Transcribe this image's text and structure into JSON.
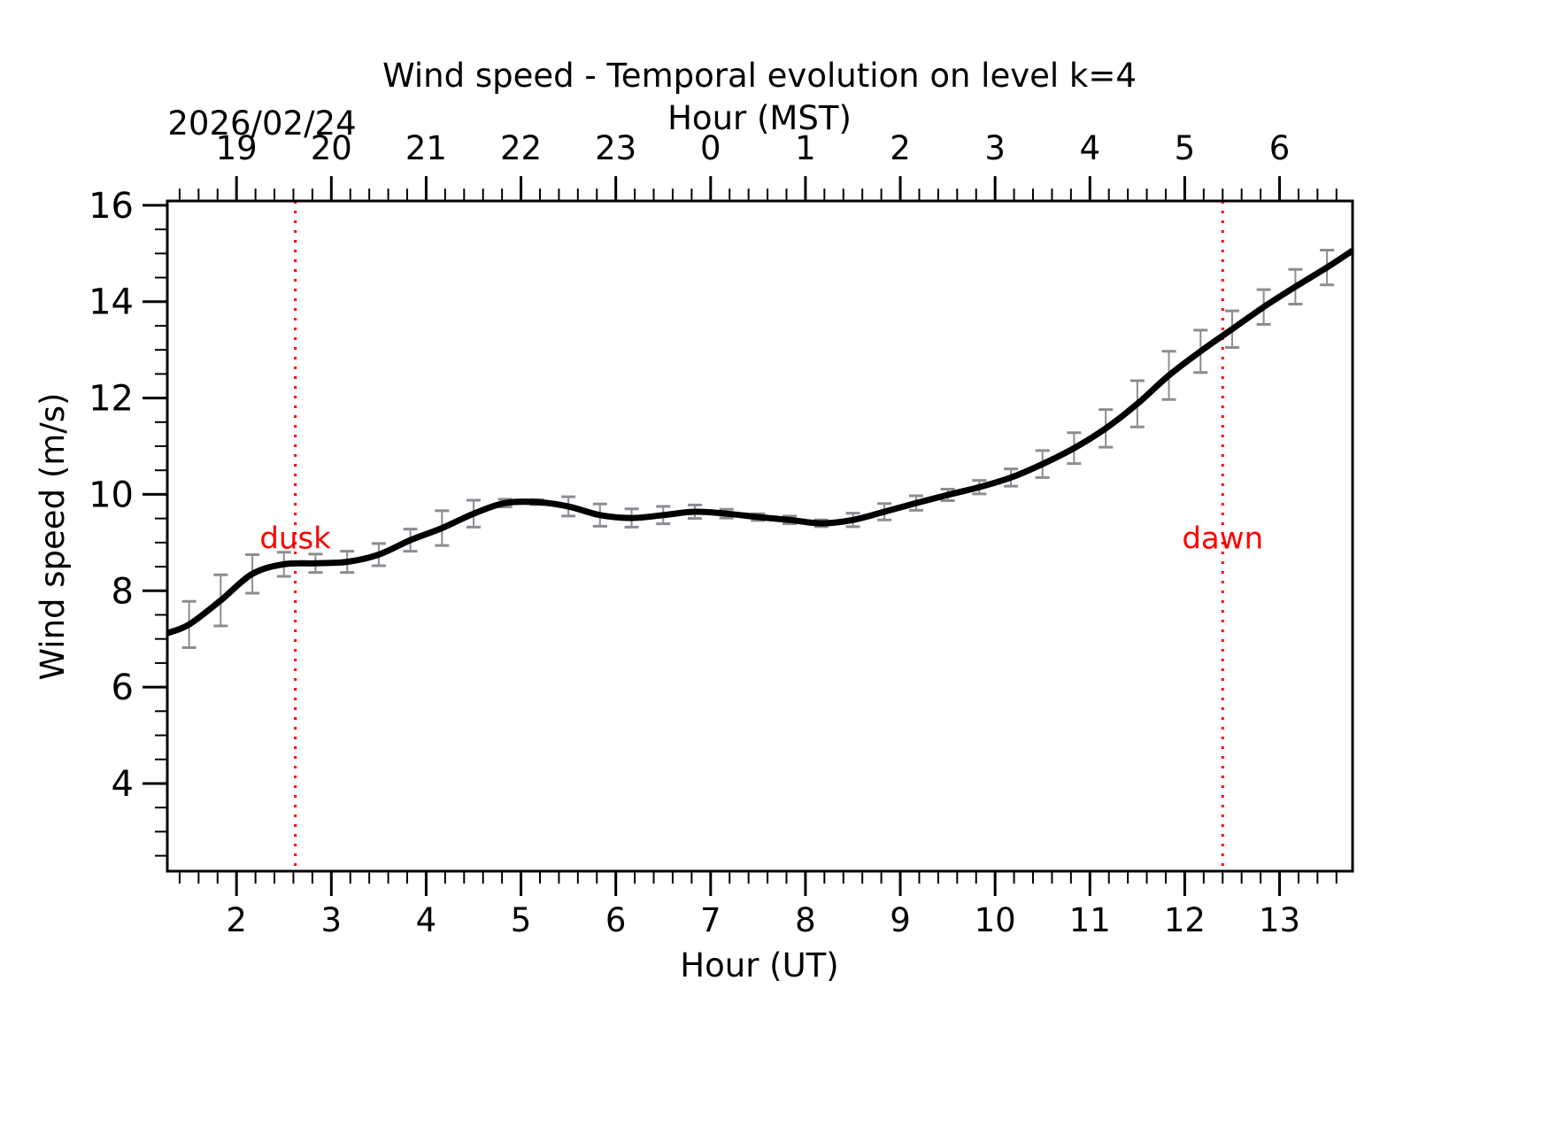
{
  "chart_data": {
    "type": "line",
    "title": "Wind speed - Temporal evolution on level k=4",
    "xlabel": "Hour (UT)",
    "ylabel": "Wind speed (m/s)",
    "top_xlabel": "Hour (MST)",
    "date_label": "2026/02/24",
    "xlim": [
      1.27,
      13.77
    ],
    "ylim": [
      2.18,
      16.09
    ],
    "x_ticks": [
      2,
      3,
      4,
      5,
      6,
      7,
      8,
      9,
      10,
      11,
      12,
      13
    ],
    "x_tick_labels": [
      "2",
      "3",
      "4",
      "5",
      "6",
      "7",
      "8",
      "9",
      "10",
      "11",
      "12",
      "13"
    ],
    "x_minor_step": 0.2,
    "top_x_tick_positions_ut": [
      2,
      3,
      4,
      5,
      6,
      7,
      8,
      9,
      10,
      11,
      12,
      13
    ],
    "top_x_tick_labels": [
      "19",
      "20",
      "21",
      "22",
      "23",
      "0",
      "1",
      "2",
      "3",
      "4",
      "5",
      "6"
    ],
    "y_ticks": [
      4,
      6,
      8,
      10,
      12,
      14,
      16
    ],
    "y_tick_labels": [
      "4",
      "6",
      "8",
      "10",
      "12",
      "14",
      "16"
    ],
    "y_minor_step": 0.5,
    "grid": false,
    "series": [
      {
        "name": "Wind speed",
        "color": "#000000",
        "x": [
          1.27,
          1.5,
          1.833,
          2.167,
          2.5,
          2.833,
          3.167,
          3.5,
          3.833,
          4.167,
          4.5,
          4.833,
          5.167,
          5.5,
          5.833,
          6.167,
          6.5,
          6.833,
          7.167,
          7.5,
          7.833,
          8.167,
          8.5,
          8.833,
          9.167,
          9.5,
          9.833,
          10.167,
          10.5,
          10.833,
          11.167,
          11.5,
          11.833,
          12.167,
          12.5,
          12.833,
          13.167,
          13.5,
          13.77
        ],
        "y": [
          7.12,
          7.3,
          7.8,
          8.35,
          8.55,
          8.57,
          8.6,
          8.75,
          9.05,
          9.3,
          9.6,
          9.82,
          9.84,
          9.75,
          9.57,
          9.51,
          9.57,
          9.64,
          9.6,
          9.53,
          9.47,
          9.4,
          9.47,
          9.64,
          9.82,
          9.99,
          10.15,
          10.35,
          10.63,
          10.96,
          11.37,
          11.88,
          12.47,
          12.97,
          13.43,
          13.89,
          14.31,
          14.71,
          15.06
        ]
      }
    ],
    "error_bars": {
      "color": "#8a8d93",
      "x": [
        1.5,
        1.833,
        2.167,
        2.5,
        2.833,
        3.167,
        3.5,
        3.833,
        4.167,
        4.5,
        4.833,
        5.167,
        5.5,
        5.833,
        6.167,
        6.5,
        6.833,
        7.167,
        7.5,
        7.833,
        8.167,
        8.5,
        8.833,
        9.167,
        9.5,
        9.833,
        10.167,
        10.5,
        10.833,
        11.167,
        11.5,
        11.833,
        12.167,
        12.5,
        12.833,
        13.167,
        13.5
      ],
      "y": [
        7.3,
        7.8,
        8.35,
        8.55,
        8.57,
        8.6,
        8.75,
        9.05,
        9.3,
        9.6,
        9.82,
        9.84,
        9.75,
        9.57,
        9.51,
        9.57,
        9.64,
        9.6,
        9.53,
        9.47,
        9.4,
        9.47,
        9.64,
        9.82,
        9.99,
        10.15,
        10.35,
        10.63,
        10.96,
        11.37,
        11.88,
        12.47,
        12.97,
        13.43,
        13.89,
        14.31,
        14.71
      ],
      "err": [
        0.48,
        0.53,
        0.4,
        0.25,
        0.19,
        0.22,
        0.23,
        0.23,
        0.36,
        0.28,
        0.08,
        0.05,
        0.2,
        0.23,
        0.19,
        0.18,
        0.14,
        0.09,
        0.07,
        0.08,
        0.07,
        0.14,
        0.17,
        0.15,
        0.12,
        0.14,
        0.18,
        0.28,
        0.32,
        0.39,
        0.48,
        0.5,
        0.44,
        0.38,
        0.36,
        0.36,
        0.36
      ]
    },
    "annotations": [
      {
        "name": "dusk",
        "label": "dusk",
        "x": 2.62,
        "label_y": 9.1,
        "color": "#ff0000",
        "style": "dotted"
      },
      {
        "name": "dawn",
        "label": "dawn",
        "x": 12.4,
        "label_y": 9.1,
        "color": "#ff0000",
        "style": "dotted"
      }
    ]
  }
}
